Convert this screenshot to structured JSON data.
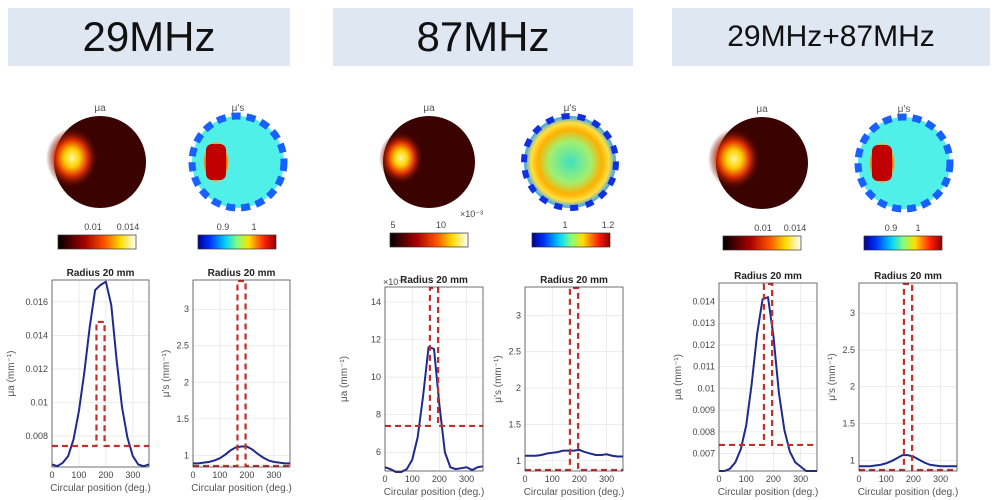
{
  "headers": [
    "29MHz",
    "87MHz",
    "29MHz+87MHz"
  ],
  "colors": {
    "header_bg": "#dfe7f3",
    "reconstruction": "#1f2a8f",
    "true_profile": "#c0302e"
  },
  "map_titles": {
    "mua": "μa",
    "mus": "μ's"
  },
  "colorbars": [
    {
      "colormap": "hot",
      "ticks": [
        "0.01",
        "0.014"
      ],
      "exponent": ""
    },
    {
      "colormap": "jet",
      "ticks": [
        "0.9",
        "1"
      ],
      "exponent": ""
    },
    {
      "colormap": "hot",
      "ticks": [
        "5",
        "10"
      ],
      "exponent": "×10⁻³"
    },
    {
      "colormap": "jet",
      "ticks": [
        "1",
        "1.2"
      ],
      "exponent": ""
    },
    {
      "colormap": "hot",
      "ticks": [
        "0.01",
        "0.014"
      ],
      "exponent": ""
    },
    {
      "colormap": "jet",
      "ticks": [
        "0.9",
        "1"
      ],
      "exponent": ""
    }
  ],
  "chart_data": [
    {
      "type": "line",
      "panel": "29MHz",
      "title": "Radius 20 mm",
      "xlabel": "Circular position (deg.)",
      "ylabel": "μa (mm⁻¹)",
      "xlim": [
        0,
        360
      ],
      "ylim": [
        0.00615,
        0.0173
      ],
      "xticks": [
        0,
        100,
        200,
        300
      ],
      "yticks": [
        0.008,
        0.01,
        0.012,
        0.014,
        0.016
      ],
      "ytick_labels": [
        "0.008",
        "0.01",
        "0.012",
        "0.014",
        "0.016"
      ],
      "exponent": "",
      "grid": true,
      "x": [
        0,
        20,
        40,
        60,
        80,
        100,
        120,
        140,
        160,
        180,
        200,
        220,
        240,
        260,
        280,
        300,
        320,
        340,
        360
      ],
      "series": [
        {
          "style": "solid",
          "values": [
            0.0063,
            0.0062,
            0.0064,
            0.0068,
            0.0078,
            0.0095,
            0.0118,
            0.0145,
            0.0167,
            0.017,
            0.0172,
            0.0158,
            0.0125,
            0.0097,
            0.0079,
            0.0068,
            0.0063,
            0.0062,
            0.0063
          ]
        },
        {
          "style": "dashed",
          "step": {
            "background": 0.0074,
            "inclusion": 0.0148,
            "from": 165,
            "to": 195
          }
        }
      ]
    },
    {
      "type": "line",
      "panel": "29MHz",
      "title": "Radius 20 mm",
      "xlabel": "Circular position (deg.)",
      "ylabel": "μ's (mm⁻¹)",
      "xlim": [
        0,
        360
      ],
      "ylim": [
        0.84,
        3.4
      ],
      "xticks": [
        0,
        100,
        200,
        300
      ],
      "yticks": [
        1,
        1.5,
        2,
        2.5,
        3
      ],
      "ytick_labels": [
        "1",
        "1.5",
        "2",
        "2.5",
        "3"
      ],
      "exponent": "",
      "grid": true,
      "x": [
        0,
        20,
        40,
        60,
        80,
        100,
        120,
        140,
        160,
        180,
        200,
        220,
        240,
        260,
        280,
        300,
        320,
        340,
        360
      ],
      "series": [
        {
          "style": "solid",
          "values": [
            0.89,
            0.89,
            0.9,
            0.91,
            0.93,
            0.96,
            1.01,
            1.07,
            1.11,
            1.12,
            1.12,
            1.08,
            1.02,
            0.97,
            0.93,
            0.91,
            0.9,
            0.89,
            0.89
          ]
        },
        {
          "style": "dashed",
          "step": {
            "background": 0.85,
            "inclusion": 3.4,
            "from": 165,
            "to": 195
          }
        }
      ]
    },
    {
      "type": "line",
      "panel": "87MHz",
      "title": "Radius 20 mm",
      "xlabel": "Circular position (deg.)",
      "ylabel": "μa (mm⁻¹)",
      "xlim": [
        0,
        360
      ],
      "ylim": [
        5,
        14.8
      ],
      "xticks": [
        0,
        100,
        200,
        300
      ],
      "yticks": [
        6,
        8,
        10,
        12,
        14
      ],
      "ytick_labels": [
        "6",
        "8",
        "10",
        "12",
        "14"
      ],
      "exponent": "×10⁻³",
      "grid": true,
      "x": [
        0,
        20,
        40,
        60,
        80,
        100,
        120,
        140,
        160,
        180,
        200,
        220,
        240,
        260,
        280,
        300,
        320,
        340,
        360
      ],
      "series": [
        {
          "style": "solid",
          "values": [
            5.2,
            5.1,
            4.95,
            4.95,
            5.1,
            5.6,
            6.8,
            9.0,
            11.6,
            11.5,
            8.5,
            6.0,
            5.2,
            5.1,
            5.15,
            5.2,
            5.05,
            5.2,
            5.25
          ]
        },
        {
          "style": "dashed",
          "step": {
            "background": 7.4,
            "inclusion": 14.8,
            "from": 165,
            "to": 195
          }
        }
      ]
    },
    {
      "type": "line",
      "panel": "87MHz",
      "title": "Radius 20 mm",
      "xlabel": "Circular position (deg.)",
      "ylabel": "μ's (mm⁻¹)",
      "xlim": [
        0,
        360
      ],
      "ylim": [
        0.86,
        3.39
      ],
      "xticks": [
        0,
        100,
        200,
        300
      ],
      "yticks": [
        1,
        1.5,
        2,
        2.5,
        3
      ],
      "ytick_labels": [
        "1",
        "1.5",
        "2",
        "2.5",
        "3"
      ],
      "exponent": "",
      "grid": true,
      "x": [
        0,
        20,
        40,
        60,
        80,
        100,
        120,
        140,
        160,
        180,
        200,
        220,
        240,
        260,
        280,
        300,
        320,
        340,
        360
      ],
      "series": [
        {
          "style": "solid",
          "values": [
            1.07,
            1.07,
            1.07,
            1.08,
            1.1,
            1.11,
            1.12,
            1.14,
            1.14,
            1.14,
            1.15,
            1.12,
            1.1,
            1.08,
            1.08,
            1.09,
            1.07,
            1.06,
            1.06
          ]
        },
        {
          "style": "dashed",
          "step": {
            "background": 0.86,
            "inclusion": 3.39,
            "from": 165,
            "to": 195
          }
        }
      ]
    },
    {
      "type": "line",
      "panel": "29MHz+87MHz",
      "title": "Radius 20 mm",
      "xlabel": "Circular position (deg.)",
      "ylabel": "μa (mm⁻¹)",
      "xlim": [
        0,
        360
      ],
      "ylim": [
        0.0062,
        0.01485
      ],
      "xticks": [
        0,
        100,
        200,
        300
      ],
      "yticks": [
        0.007,
        0.008,
        0.009,
        0.01,
        0.011,
        0.012,
        0.013,
        0.014
      ],
      "ytick_labels": [
        "0.007",
        "0.008",
        "0.009",
        "0.01",
        "0.011",
        "0.012",
        "0.013",
        "0.014"
      ],
      "exponent": "",
      "grid": true,
      "x": [
        0,
        20,
        40,
        60,
        80,
        100,
        120,
        140,
        160,
        180,
        200,
        220,
        240,
        260,
        280,
        300,
        320,
        340,
        360
      ],
      "series": [
        {
          "style": "solid",
          "values": [
            0.0062,
            0.0062,
            0.0063,
            0.0066,
            0.0072,
            0.0083,
            0.0102,
            0.0125,
            0.0141,
            0.0142,
            0.0124,
            0.0098,
            0.0081,
            0.0071,
            0.0066,
            0.0064,
            0.0062,
            0.0062,
            0.0062
          ]
        },
        {
          "style": "dashed",
          "step": {
            "background": 0.0074,
            "inclusion": 0.0149,
            "from": 165,
            "to": 195
          }
        }
      ]
    },
    {
      "type": "line",
      "panel": "29MHz+87MHz",
      "title": "Radius 20 mm",
      "xlabel": "Circular position (deg.)",
      "ylabel": "μ's (mm⁻¹)",
      "xlim": [
        0,
        360
      ],
      "ylim": [
        0.855,
        3.41
      ],
      "xticks": [
        0,
        100,
        200,
        300
      ],
      "yticks": [
        1,
        1.5,
        2,
        2.5,
        3
      ],
      "ytick_labels": [
        "1",
        "1.5",
        "2",
        "2.5",
        "3"
      ],
      "exponent": "",
      "grid": true,
      "x": [
        0,
        20,
        40,
        60,
        80,
        100,
        120,
        140,
        160,
        180,
        200,
        220,
        240,
        260,
        280,
        300,
        320,
        340,
        360
      ],
      "series": [
        {
          "style": "solid",
          "values": [
            0.92,
            0.92,
            0.92,
            0.93,
            0.94,
            0.96,
            0.99,
            1.03,
            1.07,
            1.07,
            1.05,
            1.01,
            0.97,
            0.94,
            0.93,
            0.92,
            0.92,
            0.92,
            0.92
          ]
        },
        {
          "style": "dashed",
          "step": {
            "background": 0.86,
            "inclusion": 3.41,
            "from": 165,
            "to": 195
          }
        }
      ]
    }
  ]
}
